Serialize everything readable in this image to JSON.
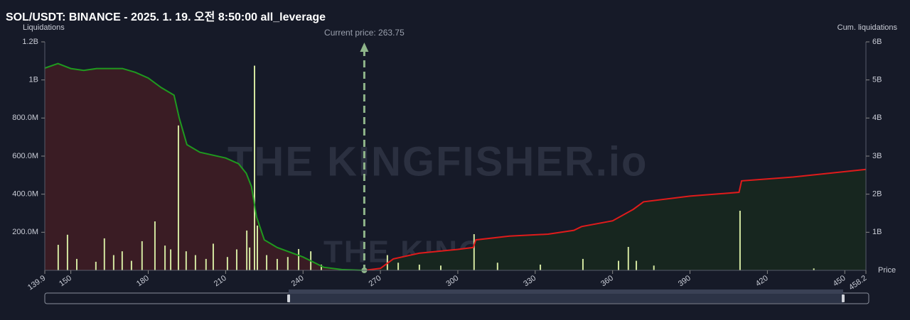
{
  "chart_data": {
    "type": "bar",
    "title": "SOL/USDT: BINANCE - 2025. 1. 19. 오전 8:50:00 all_leverage",
    "ylabel": "Liquidations",
    "y2label": "Cum. liquidations",
    "xlabel": "Price",
    "annotation": "Current price: 263.75",
    "current_price": 263.75,
    "watermark": "THE KINGFISHER.io",
    "xlim": [
      139.9,
      458.2
    ],
    "xticks": [
      139.9,
      150,
      180,
      210,
      240,
      270,
      300,
      330,
      360,
      390,
      420,
      450,
      458.2
    ],
    "ylim": [
      0,
      1200000000
    ],
    "yticks": [
      {
        "value": 200000000,
        "label": "200.0M"
      },
      {
        "value": 400000000,
        "label": "400.0M"
      },
      {
        "value": 600000000,
        "label": "600.0M"
      },
      {
        "value": 800000000,
        "label": "800.0M"
      },
      {
        "value": 1000000000,
        "label": "1B"
      },
      {
        "value": 1200000000,
        "label": "1.2B"
      }
    ],
    "y2lim": [
      0,
      6000000000
    ],
    "y2ticks": [
      {
        "value": 1000000000,
        "label": "1B"
      },
      {
        "value": 2000000000,
        "label": "2B"
      },
      {
        "value": 3000000000,
        "label": "3B"
      },
      {
        "value": 4000000000,
        "label": "4B"
      },
      {
        "value": 5000000000,
        "label": "5B"
      },
      {
        "value": 6000000000,
        "label": "6B"
      }
    ],
    "bars": {
      "color": "#d3e6a0",
      "x": [
        145.1,
        148.7,
        152.3,
        159.7,
        163,
        166.6,
        169.9,
        173.5,
        177.6,
        182.6,
        186.5,
        188.7,
        191.7,
        194.7,
        198.3,
        202.4,
        205.2,
        210.7,
        214.3,
        218.2,
        219.3,
        221.2,
        222.3,
        225.9,
        230,
        234.1,
        238.3,
        243,
        247.1,
        272.7,
        276.9,
        285.1,
        293.4,
        306.3,
        315.4,
        332,
        348.5,
        362.3,
        366.1,
        369.2,
        376,
        409.4,
        438
      ],
      "values": [
        134000000,
        187000000,
        60000000,
        45000000,
        168000000,
        80000000,
        100000000,
        50000000,
        153000000,
        257000000,
        130000000,
        110000000,
        761000000,
        100000000,
        80000000,
        60000000,
        140000000,
        70000000,
        110000000,
        209000000,
        120000000,
        1075000000,
        235000000,
        80000000,
        60000000,
        70000000,
        112000000,
        100000000,
        30000000,
        80000000,
        40000000,
        30000000,
        25000000,
        190000000,
        40000000,
        30000000,
        60000000,
        50000000,
        123000000,
        50000000,
        25000000,
        313000000,
        10000000
      ]
    },
    "series": [
      {
        "color": "#1f9a1f",
        "fill": "#3a1c24",
        "axis": "y2",
        "x": [
          139.9,
          145,
          150,
          155,
          160,
          170,
          175,
          180,
          185,
          190,
          192,
          195,
          200,
          210,
          215,
          218,
          220,
          222,
          225,
          230,
          240,
          248,
          255,
          263.75
        ],
        "values": [
          5310000000,
          5430000000,
          5300000000,
          5250000000,
          5300000000,
          5300000000,
          5200000000,
          5050000000,
          4800000000,
          4600000000,
          4000000000,
          3300000000,
          3100000000,
          2950000000,
          2800000000,
          2550000000,
          2200000000,
          1400000000,
          800000000,
          600000000,
          350000000,
          80000000,
          20000000,
          0
        ]
      },
      {
        "color": "#e01b1b",
        "fill": "#17261f",
        "axis": "y2",
        "x": [
          263.75,
          270,
          275,
          285,
          300,
          306,
          307,
          320,
          335,
          345,
          348,
          360,
          368,
          372,
          390,
          409,
          410,
          430,
          458.2
        ],
        "values": [
          0,
          50000000,
          300000000,
          450000000,
          550000000,
          600000000,
          800000000,
          900000000,
          950000000,
          1050000000,
          1150000000,
          1300000000,
          1600000000,
          1800000000,
          1950000000,
          2050000000,
          2350000000,
          2450000000,
          2650000000
        ]
      }
    ]
  }
}
